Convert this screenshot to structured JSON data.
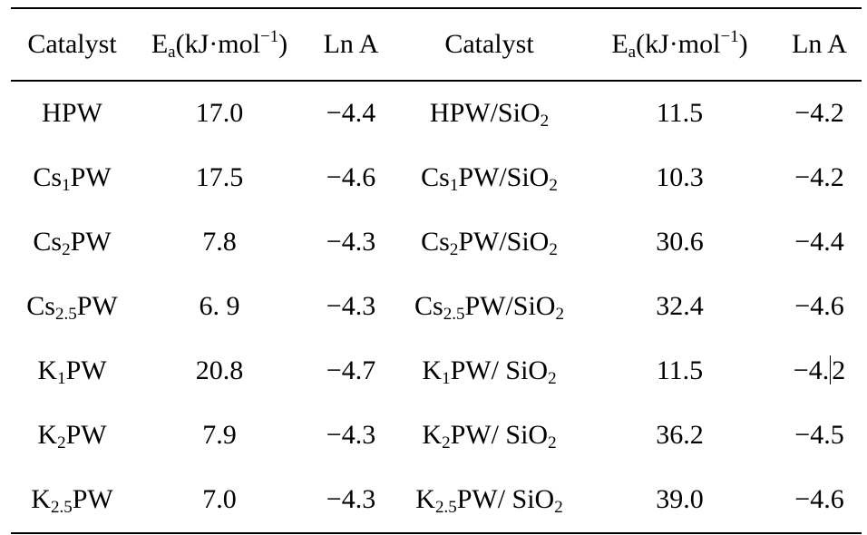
{
  "headers": {
    "catalyst_left": "Catalyst",
    "ea_left_main": "E",
    "ea_left_sub": "a",
    "ea_left_unit_open": "(kJ·mol",
    "ea_left_unit_sup": "−1",
    "ea_left_unit_close": ")",
    "lna_left": "Ln A",
    "catalyst_right": "Catalyst",
    "ea_right_main": "E",
    "ea_right_sub": "a",
    "ea_right_unit_open": "(kJ·mol",
    "ea_right_unit_sup": "−1",
    "ea_right_unit_close": ")",
    "lna_right": "Ln A"
  },
  "rows": [
    {
      "left_catalyst": {
        "pre": "HPW",
        "sub": "",
        "post": ""
      },
      "left_ea": "17.0",
      "left_lna": "−4.4",
      "right_catalyst": {
        "pre": "HPW/SiO",
        "sub": "2",
        "post": "",
        "sub2": "",
        "post2": ""
      },
      "right_ea": "11.5",
      "right_lna": "−4.2"
    },
    {
      "left_catalyst": {
        "pre": "Cs",
        "sub": "1",
        "post": "PW"
      },
      "left_ea": "17.5",
      "left_lna": "−4.6",
      "right_catalyst": {
        "pre": "Cs",
        "sub": "1",
        "post": "PW/SiO",
        "sub2": "2",
        "post2": ""
      },
      "right_ea": "10.3",
      "right_lna": "−4.2"
    },
    {
      "left_catalyst": {
        "pre": "Cs",
        "sub": "2",
        "post": "PW"
      },
      "left_ea": "7.8",
      "left_lna": "−4.3",
      "right_catalyst": {
        "pre": "Cs",
        "sub": "2",
        "post": "PW/SiO",
        "sub2": "2",
        "post2": ""
      },
      "right_ea": "30.6",
      "right_lna": "−4.4"
    },
    {
      "left_catalyst": {
        "pre": "Cs",
        "sub": "2.5",
        "post": "PW"
      },
      "left_ea": "6. 9",
      "left_lna": "−4.3",
      "right_catalyst": {
        "pre": "Cs",
        "sub": "2.5",
        "post": "PW/SiO",
        "sub2": "2",
        "post2": ""
      },
      "right_ea": "32.4",
      "right_lna": "−4.6"
    },
    {
      "left_catalyst": {
        "pre": "K",
        "sub": "1",
        "post": "PW"
      },
      "left_ea": "20.8",
      "left_lna": "−4.7",
      "right_catalyst": {
        "pre": "K",
        "sub": "1",
        "post": "PW/ SiO",
        "sub2": "2",
        "post2": ""
      },
      "right_ea": "11.5",
      "right_lna_a": "−4.",
      "right_lna_b": "2"
    },
    {
      "left_catalyst": {
        "pre": "K",
        "sub": "2",
        "post": "PW"
      },
      "left_ea": "7.9",
      "left_lna": "−4.3",
      "right_catalyst": {
        "pre": "K",
        "sub": "2",
        "post": "PW/ SiO",
        "sub2": "2",
        "post2": ""
      },
      "right_ea": "36.2",
      "right_lna": "−4.5"
    },
    {
      "left_catalyst": {
        "pre": "K",
        "sub": "2.5",
        "post": "PW"
      },
      "left_ea": "7.0",
      "left_lna": "−4.3",
      "right_catalyst": {
        "pre": "K",
        "sub": "2.5",
        "post": "PW/ SiO",
        "sub2": "2",
        "post2": ""
      },
      "right_ea": "39.0",
      "right_lna": "−4.6"
    }
  ]
}
